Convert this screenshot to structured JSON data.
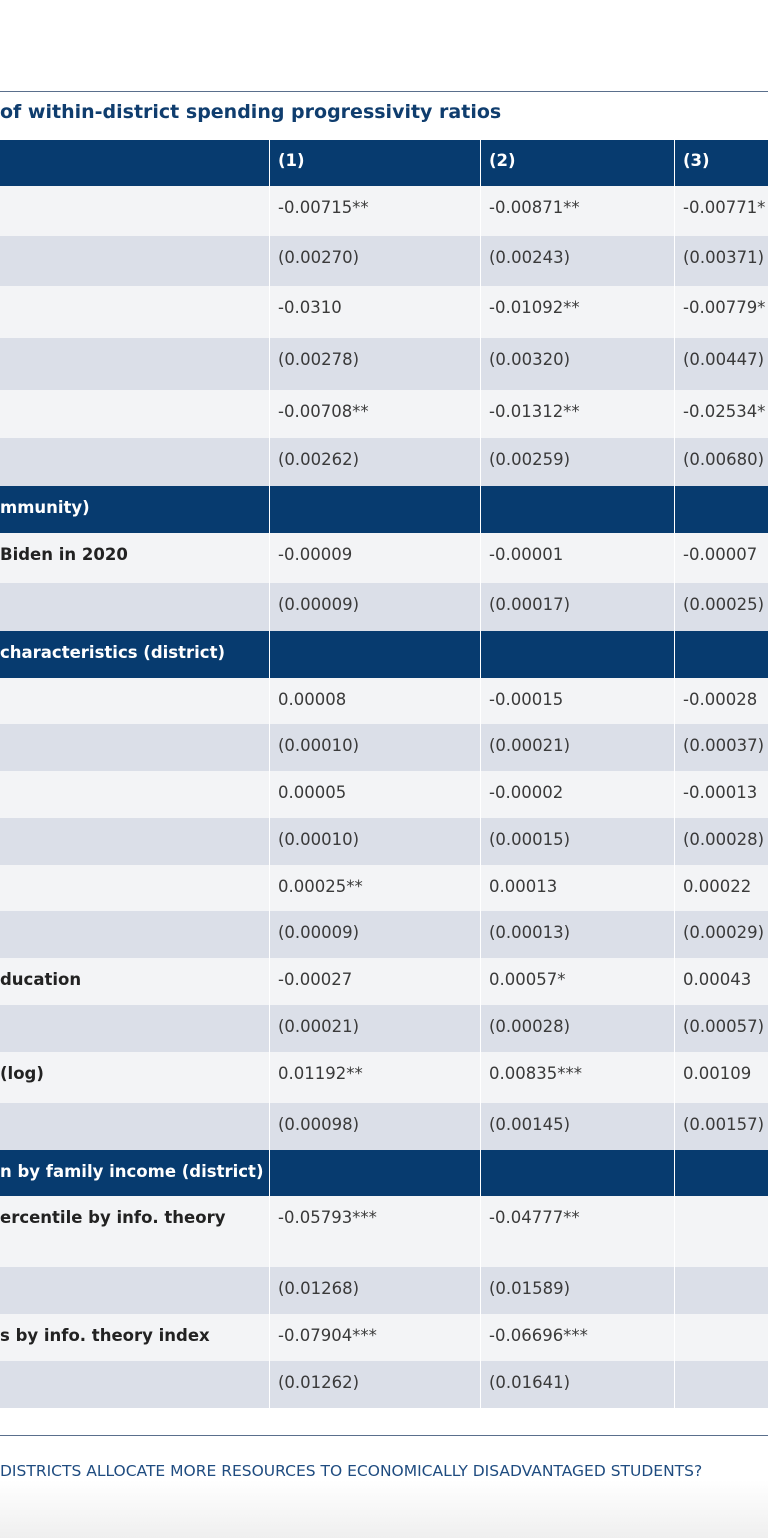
{
  "table": {
    "caption": "of within-district spending progressivity ratios",
    "headers": [
      "",
      "(1)",
      "(2)",
      "(3)"
    ],
    "rows": [
      {
        "type": "light",
        "label": "",
        "c1": "-0.00715**",
        "c2": "-0.00871**",
        "c3": "-0.00771*"
      },
      {
        "type": "dark",
        "label": "",
        "c1": "(0.00270)",
        "c2": "(0.00243)",
        "c3": "(0.00371)"
      },
      {
        "type": "light",
        "label": "",
        "c1": "-0.0310",
        "c2": "-0.01092**",
        "c3": "-0.00779*"
      },
      {
        "type": "dark",
        "label": "",
        "c1": "(0.00278)",
        "c2": "(0.00320)",
        "c3": "(0.00447)"
      },
      {
        "type": "light",
        "label": "",
        "c1": "-0.00708**",
        "c2": "-0.01312**",
        "c3": "-0.02534*"
      },
      {
        "type": "dark",
        "label": "",
        "c1": "(0.00262)",
        "c2": "(0.00259)",
        "c3": "(0.00680)"
      },
      {
        "type": "section",
        "label": "mmunity)",
        "c1": "",
        "c2": "",
        "c3": ""
      },
      {
        "type": "light",
        "label": " Biden in 2020",
        "c1": "-0.00009",
        "c2": "-0.00001",
        "c3": "-0.00007"
      },
      {
        "type": "dark",
        "label": "",
        "c1": "(0.00009)",
        "c2": "(0.00017)",
        "c3": "(0.00025)"
      },
      {
        "type": "section",
        "label": "characteristics (district)",
        "c1": "",
        "c2": "",
        "c3": ""
      },
      {
        "type": "light",
        "label": "",
        "c1": "0.00008",
        "c2": "-0.00015",
        "c3": "-0.00028"
      },
      {
        "type": "dark",
        "label": "",
        "c1": "(0.00010)",
        "c2": " (0.00021)",
        "c3": " (0.00037)"
      },
      {
        "type": "light",
        "label": "",
        "c1": "0.00005",
        "c2": "-0.00002",
        "c3": "-0.00013"
      },
      {
        "type": "dark",
        "label": "",
        "c1": "(0.00010)",
        "c2": "(0.00015)",
        "c3": "(0.00028)"
      },
      {
        "type": "light",
        "label": "",
        "c1": "0.00025**",
        "c2": "0.00013",
        "c3": "0.00022"
      },
      {
        "type": "dark",
        "label": "",
        "c1": "(0.00009)",
        "c2": "(0.00013)",
        "c3": " (0.00029)"
      },
      {
        "type": "light",
        "label": "ducation",
        "c1": "-0.00027",
        "c2": "0.00057*",
        "c3": "0.00043"
      },
      {
        "type": "dark",
        "label": "",
        "c1": "(0.00021)",
        "c2": "(0.00028)",
        "c3": " (0.00057)"
      },
      {
        "type": "light",
        "label": "(log)",
        "c1": "0.01192**",
        "c2": "0.00835***",
        "c3": "0.00109"
      },
      {
        "type": "dark",
        "label": "",
        "c1": "(0.00098)",
        "c2": "(0.00145)",
        "c3": " (0.00157)"
      },
      {
        "type": "section",
        "label": "n by family income (district)",
        "c1": "",
        "c2": "",
        "c3": ""
      },
      {
        "type": "light",
        "label": "ercentile by info. theory",
        "c1": "-0.05793***",
        "c2": "-0.04777**",
        "c3": ""
      },
      {
        "type": "dark",
        "label": "",
        "c1": "(0.01268)",
        "c2": "(0.01589)",
        "c3": ""
      },
      {
        "type": "light",
        "label": "s by info. theory index",
        "c1": "-0.07904***",
        "c2": "-0.06696***",
        "c3": ""
      },
      {
        "type": "dark",
        "label": "",
        "c1": "(0.01262)",
        "c2": " (0.01641)",
        "c3": ""
      }
    ]
  },
  "footer": {
    "text": "DISTRICTS ALLOCATE MORE RESOURCES TO ECONOMICALLY DISADVANTAGED STUDENTS?"
  }
}
